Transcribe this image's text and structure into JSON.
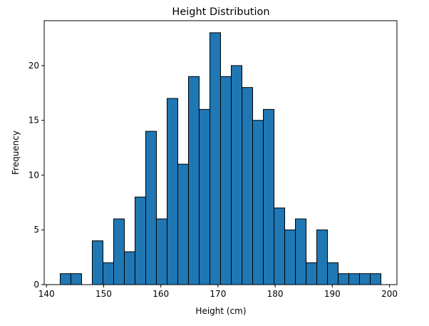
{
  "chart_data": {
    "type": "bar",
    "subtype": "histogram",
    "title": "Height Distribution",
    "xlabel": "Height (cm)",
    "ylabel": "Frequency",
    "bin_start": 142.4,
    "bin_end": 198.5,
    "bins": 30,
    "values": [
      1,
      1,
      0,
      4,
      2,
      6,
      3,
      8,
      14,
      6,
      17,
      11,
      19,
      16,
      23,
      19,
      20,
      18,
      15,
      16,
      7,
      5,
      6,
      2,
      5,
      2,
      1,
      1,
      1,
      1
    ],
    "xlim": [
      139.6,
      201.3
    ],
    "ylim": [
      0,
      24.1
    ],
    "xticks": [
      140,
      150,
      160,
      170,
      180,
      190,
      200
    ],
    "yticks": [
      0,
      5,
      10,
      15,
      20
    ],
    "xtick_labels": [
      "140",
      "150",
      "160",
      "170",
      "180",
      "190",
      "200"
    ],
    "ytick_labels": [
      "0",
      "5",
      "10",
      "15",
      "20"
    ],
    "bar_color": "#1f77b4",
    "edge_color": "#000000",
    "grid": false
  }
}
